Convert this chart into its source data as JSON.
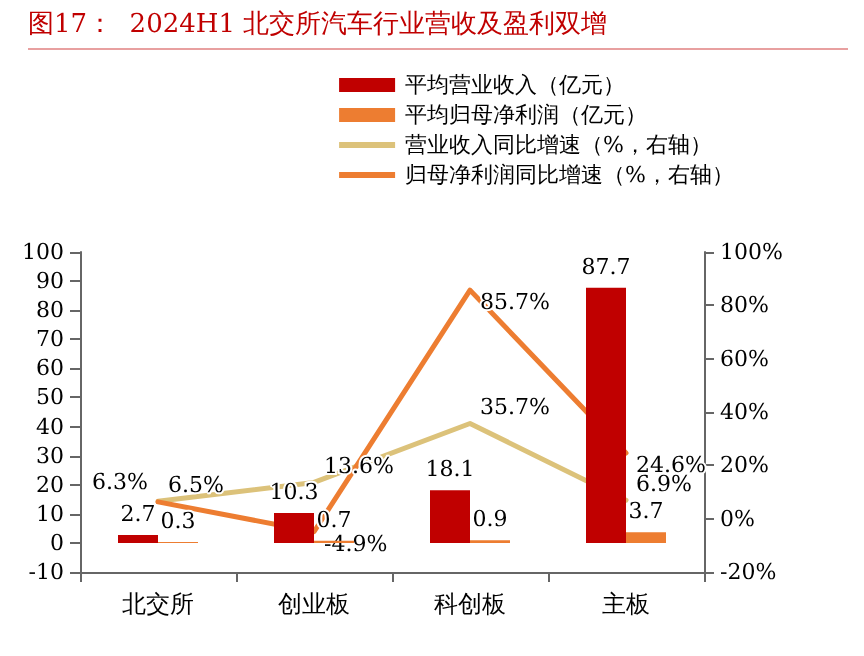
{
  "chart_data": {
    "type": "bar",
    "title": "图17：  2024H1 北交所汽车行业营收及盈利双增",
    "categories": [
      "北交所",
      "创业板",
      "科创板",
      "主板"
    ],
    "series": [
      {
        "name": "平均营业收入（亿元）",
        "color": "#c00000",
        "values": [
          2.7,
          10.3,
          18.1,
          87.7
        ],
        "value_labels": [
          "2.7",
          "10.3",
          "18.1",
          "87.7"
        ]
      },
      {
        "name": "平均归母净利润（亿元）",
        "color": "#ed7d31",
        "values": [
          0.3,
          0.7,
          0.9,
          3.7
        ],
        "value_labels": [
          "0.3",
          "0.7",
          "0.9",
          "3.7"
        ]
      },
      {
        "name": "营业收入同比增速（%，右轴）",
        "type": "line",
        "axis": "y2",
        "color": "#dcc27a",
        "values": [
          6.5,
          13.6,
          35.7,
          6.9
        ],
        "value_labels": [
          "6.5%",
          "13.6%",
          "35.7%",
          "6.9%"
        ]
      },
      {
        "name": "归母净利润同比增速（%，右轴）",
        "type": "line",
        "axis": "y2",
        "color": "#ed7d31",
        "values": [
          6.3,
          -4.9,
          85.7,
          24.6
        ],
        "value_labels": [
          "6.3%",
          "-4.9%",
          "85.7%",
          "24.6%"
        ]
      }
    ],
    "ylim": [
      -10,
      100
    ],
    "yticks": [
      -10,
      0,
      10,
      20,
      30,
      40,
      50,
      60,
      70,
      80,
      90,
      100
    ],
    "y2lim": [
      -20,
      100
    ],
    "y2ticks": [
      {
        "value": -20,
        "label": "-20%"
      },
      {
        "value": 0,
        "label": "0%"
      },
      {
        "value": 20,
        "label": "20%"
      },
      {
        "value": 40,
        "label": "40%"
      },
      {
        "value": 60,
        "label": "60%"
      },
      {
        "value": 80,
        "label": "80%"
      },
      {
        "value": 100,
        "label": "100%"
      }
    ],
    "legend": "top right",
    "grid": false,
    "marker": "none",
    "line_style": "solid"
  }
}
